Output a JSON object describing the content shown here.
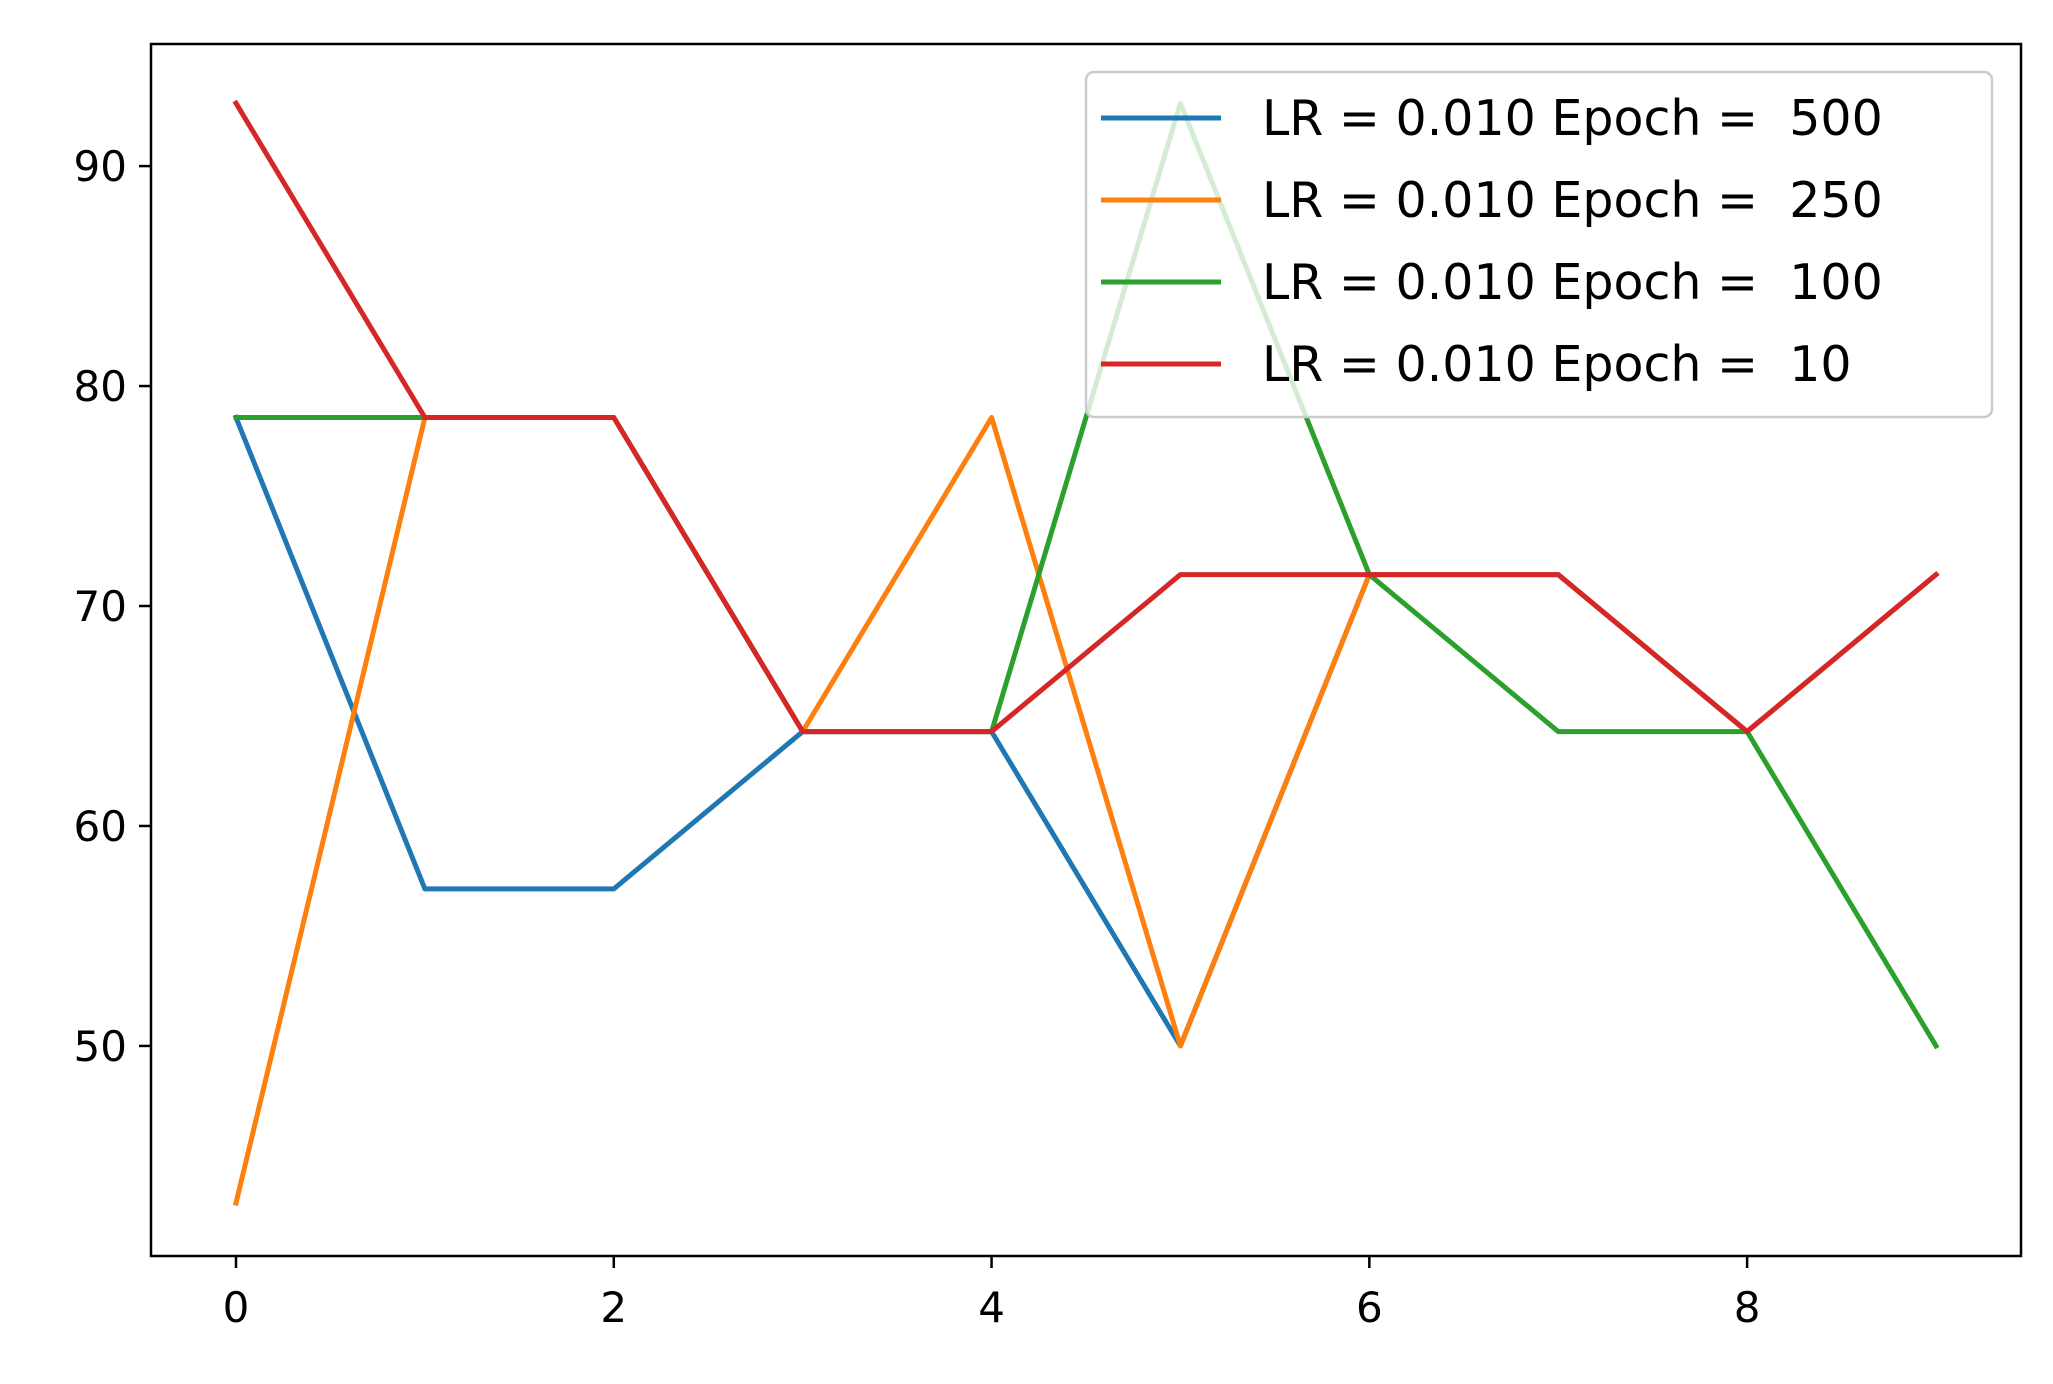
{
  "chart_data": {
    "type": "line",
    "title": "",
    "xlabel": "",
    "ylabel": "",
    "xlim": [
      -0.45,
      9.45
    ],
    "ylim": [
      40.45,
      95.55
    ],
    "x": [
      0,
      1,
      2,
      3,
      4,
      5,
      6,
      7,
      8,
      9
    ],
    "xticks": [
      0,
      2,
      4,
      6,
      8
    ],
    "yticks": [
      50,
      60,
      70,
      80,
      90
    ],
    "grid": false,
    "legend_position": "upper right",
    "series": [
      {
        "name": "LR = 0.010 Epoch =  500",
        "color": "#1f77b4",
        "values": [
          78.57,
          57.14,
          57.14,
          64.29,
          64.29,
          50.0,
          71.43,
          71.43,
          64.29,
          71.43
        ]
      },
      {
        "name": "LR = 0.010 Epoch =  250",
        "color": "#ff7f0e",
        "values": [
          42.86,
          78.57,
          78.57,
          64.29,
          78.57,
          50.0,
          71.43,
          71.43,
          64.29,
          71.43
        ]
      },
      {
        "name": "LR = 0.010 Epoch =  100",
        "color": "#2ca02c",
        "values": [
          78.57,
          78.57,
          78.57,
          64.29,
          64.29,
          92.86,
          71.43,
          64.29,
          64.29,
          50.0
        ]
      },
      {
        "name": "LR = 0.010 Epoch =  10",
        "color": "#d62728",
        "values": [
          92.86,
          78.57,
          78.57,
          64.29,
          64.29,
          71.43,
          71.43,
          71.43,
          64.29,
          71.43
        ]
      }
    ]
  }
}
